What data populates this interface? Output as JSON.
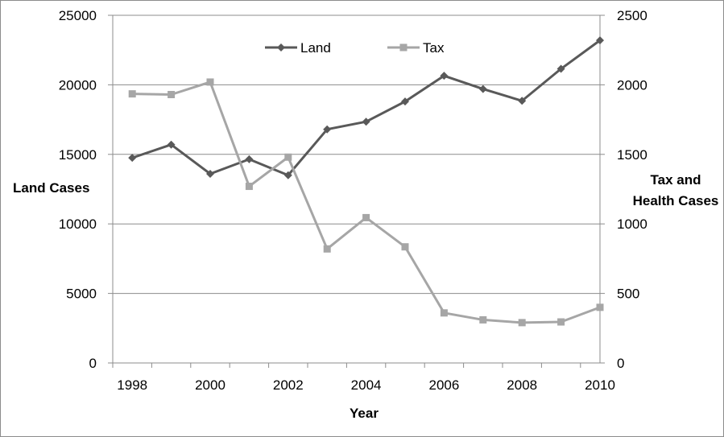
{
  "chart_data": {
    "type": "line",
    "x": [
      1998,
      1999,
      2000,
      2001,
      2002,
      2003,
      2004,
      2005,
      2006,
      2007,
      2008,
      2009,
      2010
    ],
    "series": [
      {
        "name": "Land",
        "axis": "left",
        "color": "#595959",
        "marker": "diamond",
        "values": [
          14750,
          15700,
          13600,
          14650,
          13500,
          16800,
          17350,
          18800,
          20650,
          19700,
          18850,
          21150,
          23200
        ]
      },
      {
        "name": "Tax",
        "axis": "right",
        "color": "#a6a6a6",
        "marker": "square",
        "values": [
          1935,
          1930,
          2020,
          1270,
          1480,
          820,
          1045,
          835,
          360,
          310,
          290,
          295,
          400
        ]
      }
    ],
    "xlabel": "Year",
    "ylabel": "Land Cases",
    "y2label": [
      "Tax  and",
      "Health Cases"
    ],
    "ylim": [
      0,
      25000
    ],
    "y2lim": [
      0,
      2500
    ],
    "yticks": [
      "0",
      "5000",
      "10000",
      "15000",
      "20000",
      "25000"
    ],
    "y2ticks": [
      "0",
      "500",
      "1000",
      "1500",
      "2000",
      "2500"
    ],
    "xticks": [
      "1998",
      "2000",
      "2002",
      "2004",
      "2006",
      "2008",
      "2010"
    ],
    "grid": "horizontal",
    "legend_position": "top-center"
  }
}
